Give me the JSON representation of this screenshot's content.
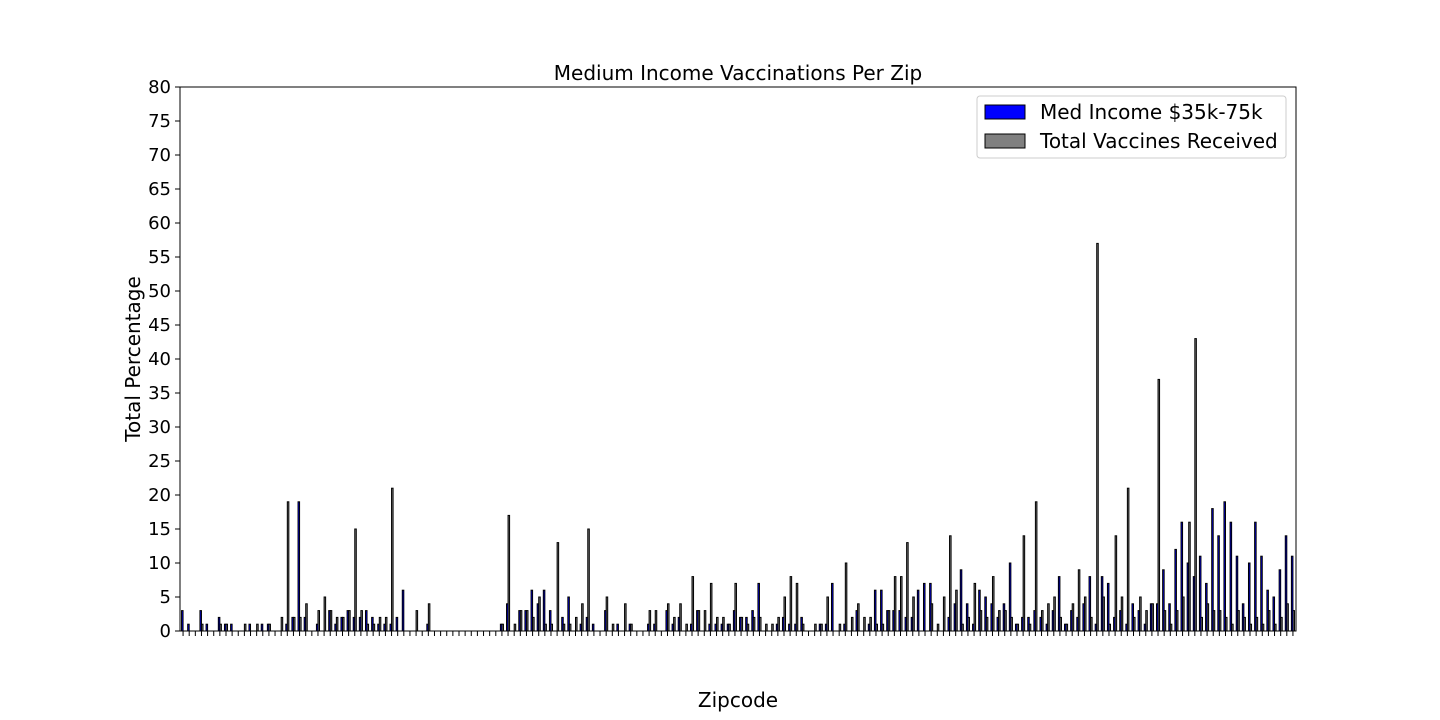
{
  "chart_data": {
    "type": "bar",
    "title": "Medium Income Vaccinations Per Zip",
    "xlabel": "Zipcode",
    "ylabel": "Total Percentage",
    "ylim": [
      0,
      80
    ],
    "yticks": [
      0,
      5,
      10,
      15,
      20,
      25,
      30,
      35,
      40,
      45,
      50,
      55,
      60,
      65,
      70,
      75,
      80
    ],
    "legend_position": "top-right",
    "grid": false,
    "series": [
      {
        "name": "Med Income $35k-75k",
        "color": "#0000ff",
        "values": [
          3,
          1,
          0,
          3,
          1,
          0,
          2,
          1,
          1,
          0,
          0,
          1,
          0,
          1,
          1,
          0,
          0,
          1,
          2,
          19,
          2,
          0,
          1,
          0,
          3,
          1,
          2,
          3,
          2,
          2,
          3,
          2,
          1,
          1,
          1,
          2,
          6,
          0,
          0,
          0,
          1,
          0,
          0,
          0,
          0,
          0,
          0,
          0,
          0,
          0,
          0,
          0,
          1,
          4,
          0,
          3,
          3,
          6,
          4,
          6,
          3,
          0,
          2,
          5,
          0,
          1,
          2,
          1,
          0,
          3,
          0,
          1,
          0,
          1,
          0,
          0,
          1,
          1,
          0,
          3,
          1,
          2,
          0,
          1,
          3,
          0,
          1,
          1,
          1,
          1,
          3,
          2,
          2,
          3,
          7,
          0,
          0,
          1,
          2,
          1,
          1,
          2,
          0,
          0,
          1,
          1,
          7,
          0,
          1,
          0,
          3,
          0,
          1,
          6,
          6,
          3,
          3,
          3,
          2,
          2,
          6,
          7,
          7,
          0,
          0,
          2,
          4,
          9,
          4,
          1,
          6,
          5,
          4,
          2,
          4,
          10,
          1,
          2,
          2,
          3,
          2,
          1,
          3,
          8,
          1,
          3,
          2,
          4,
          8,
          1,
          8,
          7,
          2,
          3,
          1,
          4,
          3,
          1,
          4,
          4,
          9,
          4,
          12,
          16,
          10,
          8,
          11,
          7,
          18,
          14,
          19,
          16,
          11,
          4,
          10,
          16,
          11,
          6,
          5,
          9,
          14,
          11
        ],
        "labels_shown": "sparse"
      },
      {
        "name": "Total Vaccines Received",
        "color": "#808080",
        "values": [
          0,
          0,
          0,
          1,
          0,
          0,
          1,
          1,
          0,
          0,
          1,
          0,
          1,
          0,
          1,
          0,
          2,
          19,
          2,
          2,
          4,
          0,
          3,
          5,
          3,
          2,
          2,
          3,
          15,
          3,
          1,
          1,
          2,
          2,
          21,
          0,
          0,
          0,
          3,
          0,
          4,
          0,
          0,
          0,
          0,
          0,
          0,
          0,
          0,
          0,
          0,
          0,
          1,
          17,
          1,
          3,
          3,
          2,
          5,
          1,
          1,
          13,
          1,
          1,
          2,
          4,
          15,
          0,
          0,
          5,
          1,
          0,
          4,
          1,
          0,
          0,
          3,
          3,
          0,
          4,
          2,
          4,
          1,
          8,
          3,
          3,
          7,
          2,
          2,
          1,
          7,
          2,
          1,
          2,
          2,
          1,
          1,
          2,
          5,
          8,
          7,
          1,
          0,
          1,
          1,
          5,
          0,
          1,
          10,
          2,
          4,
          2,
          2,
          1,
          1,
          3,
          8,
          8,
          13,
          5,
          0,
          0,
          4,
          1,
          5,
          14,
          6,
          1,
          2,
          7,
          3,
          2,
          8,
          3,
          3,
          2,
          1,
          14,
          1,
          19,
          3,
          4,
          5,
          2,
          1,
          4,
          9,
          5,
          2,
          57,
          5,
          1,
          14,
          5,
          21,
          2,
          5,
          3,
          4,
          37,
          3,
          1,
          3,
          5,
          16,
          43,
          2,
          4,
          3,
          3,
          2,
          1,
          3,
          2,
          1,
          2,
          1,
          3,
          1,
          2,
          4,
          3
        ],
        "labels_shown": "sparse"
      }
    ]
  }
}
